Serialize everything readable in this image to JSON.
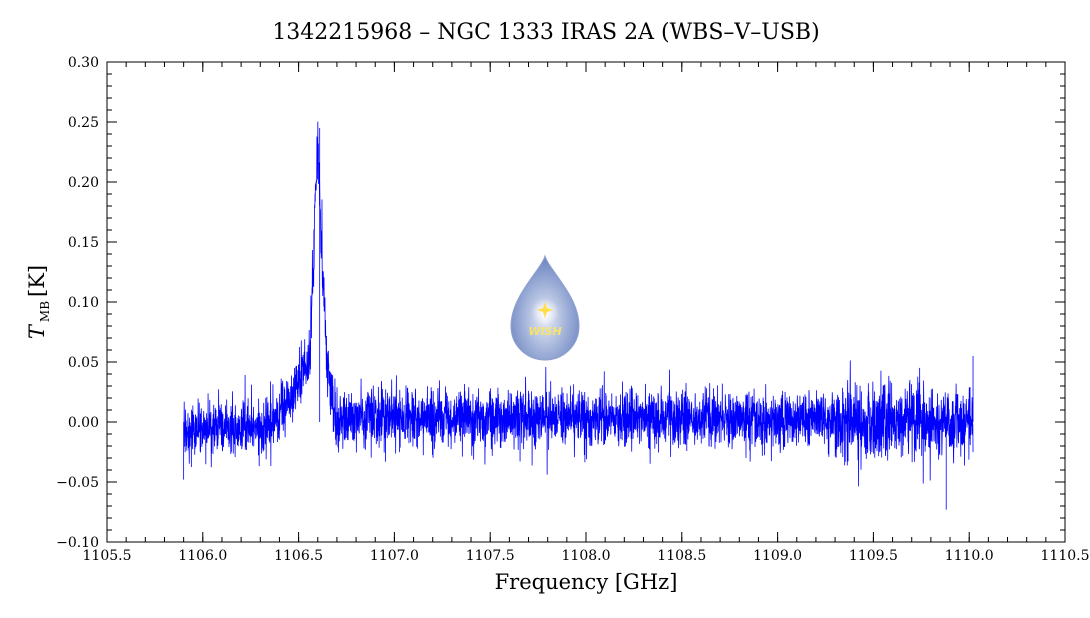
{
  "chart_data": {
    "type": "line",
    "title": "1342215968 – NGC 1333 IRAS 2A (WBS–V–USB)",
    "xlabel": "Frequency [GHz]",
    "ylabel_main": "T",
    "ylabel_sub": "MB",
    "ylabel_unit": "[K]",
    "xlim": [
      1105.5,
      1110.5
    ],
    "ylim": [
      -0.1,
      0.3
    ],
    "x_ticks": [
      "1105.5",
      "1106.0",
      "1106.5",
      "1107.0",
      "1107.5",
      "1108.0",
      "1108.5",
      "1109.0",
      "1109.5",
      "1110.0",
      "1110.5"
    ],
    "y_ticks": [
      "−0.10",
      "−0.05",
      "0.00",
      "0.05",
      "0.10",
      "0.15",
      "0.20",
      "0.25",
      "0.30"
    ],
    "grid": false,
    "line_color": "#0000ff",
    "x_range_data": [
      1105.9,
      1110.02
    ],
    "noise_rms": 0.012,
    "envelope": [
      [
        1105.9,
        -0.005
      ],
      [
        1106.3,
        -0.005
      ],
      [
        1106.4,
        0.005
      ],
      [
        1106.5,
        0.035
      ],
      [
        1106.56,
        0.055
      ],
      [
        1106.59,
        0.2
      ],
      [
        1106.6,
        0.23
      ],
      [
        1106.62,
        0.15
      ],
      [
        1106.65,
        0.04
      ],
      [
        1106.7,
        0.0
      ],
      [
        1106.8,
        0.005
      ],
      [
        1110.02,
        0.0
      ]
    ],
    "spike_points": [
      [
        1106.61,
        0.245
      ],
      [
        1109.88,
        -0.073
      ],
      [
        1105.9,
        -0.048
      ],
      [
        1110.02,
        0.055
      ]
    ]
  },
  "logo": {
    "name": "WISH",
    "color_top": "#5a74b8",
    "color_bottom": "#c8d2ea"
  }
}
